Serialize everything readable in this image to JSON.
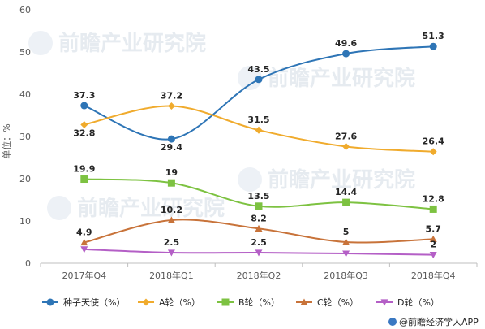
{
  "chart_data": {
    "type": "line",
    "title": "",
    "xlabel": "",
    "ylabel": "单位：%",
    "ylim": [
      0,
      60
    ],
    "yticks": [
      0,
      10,
      20,
      30,
      40,
      50,
      60
    ],
    "grid": false,
    "legend_position": "bottom",
    "categories": [
      "2017年Q4",
      "2018年Q1",
      "2018年Q2",
      "2018年Q3",
      "2018年Q4"
    ],
    "series": [
      {
        "name": "种子天使（%）",
        "values": [
          37.3,
          29.4,
          43.5,
          49.6,
          51.3
        ],
        "color": "#2e75b6",
        "marker": "circle",
        "labels": [
          "37.3",
          "29.4",
          "43.5",
          "49.6",
          "51.3"
        ]
      },
      {
        "name": "A轮（%）",
        "values": [
          32.8,
          37.2,
          31.5,
          27.6,
          26.4
        ],
        "color": "#f0ab2d",
        "marker": "diamond",
        "labels": [
          "32.8",
          "37.2",
          "31.5",
          "27.6",
          "26.4"
        ]
      },
      {
        "name": "B轮（%）",
        "values": [
          19.9,
          19,
          13.5,
          14.4,
          12.8
        ],
        "color": "#7dc241",
        "marker": "square",
        "labels": [
          "19.9",
          "19",
          "13.5",
          "14.4",
          "12.8"
        ]
      },
      {
        "name": "C轮（%）",
        "values": [
          4.9,
          10.2,
          8.2,
          5,
          5.7
        ],
        "color": "#c8733a",
        "marker": "triangle",
        "labels": [
          "4.9",
          "10.2",
          "8.2",
          "5",
          "5.7"
        ]
      },
      {
        "name": "D轮（%）",
        "values": [
          3.3,
          2.5,
          2.5,
          2.3,
          2
        ],
        "color": "#b45fc6",
        "marker": "triangle-down",
        "labels": [
          "",
          "2.5",
          "2.5",
          "",
          "2"
        ]
      }
    ]
  },
  "source": "前瞻经济学人APP",
  "watermark": "前瞻产业研究院"
}
